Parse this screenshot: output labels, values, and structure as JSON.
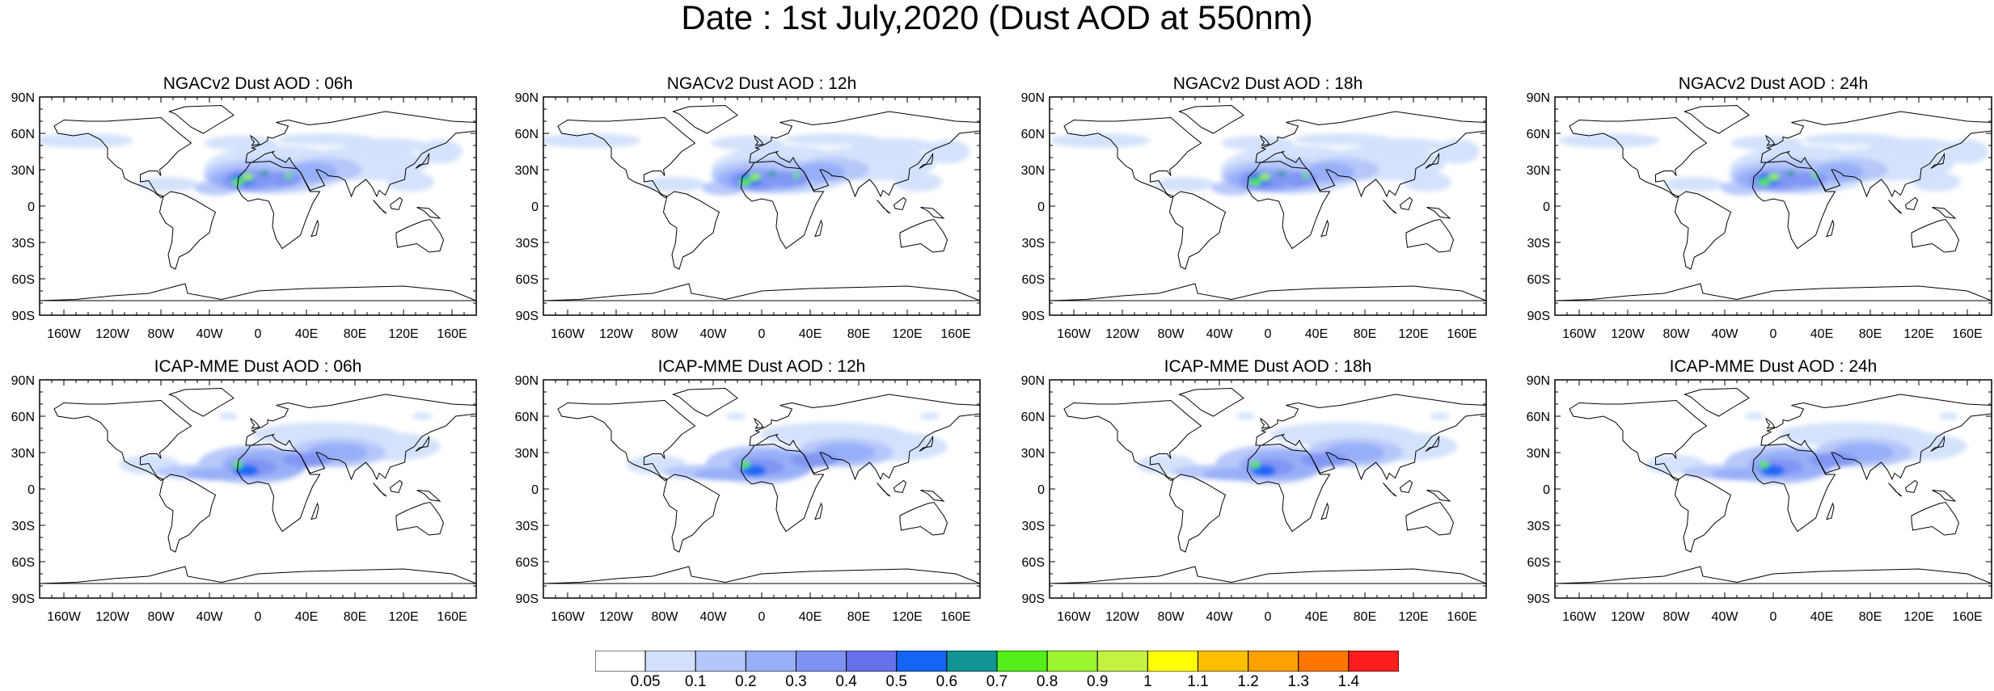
{
  "title": "Date : 1st July,2020 (Dust AOD at 550nm)",
  "panels": [
    {
      "title": "NGACv2 Dust AOD : 06h",
      "model": "NGACv2",
      "hour": "06h"
    },
    {
      "title": "NGACv2 Dust AOD : 12h",
      "model": "NGACv2",
      "hour": "12h"
    },
    {
      "title": "NGACv2 Dust AOD : 18h",
      "model": "NGACv2",
      "hour": "18h"
    },
    {
      "title": "NGACv2 Dust AOD : 24h",
      "model": "NGACv2",
      "hour": "24h"
    },
    {
      "title": "ICAP-MME Dust AOD : 06h",
      "model": "ICAP-MME",
      "hour": "06h"
    },
    {
      "title": "ICAP-MME Dust AOD : 12h",
      "model": "ICAP-MME",
      "hour": "12h"
    },
    {
      "title": "ICAP-MME Dust AOD : 18h",
      "model": "ICAP-MME",
      "hour": "18h"
    },
    {
      "title": "ICAP-MME Dust AOD : 24h",
      "model": "ICAP-MME",
      "hour": "24h"
    }
  ],
  "lat_labels": [
    "90N",
    "60N",
    "30N",
    "0",
    "30S",
    "60S",
    "90S"
  ],
  "lon_labels": [
    "160W",
    "120W",
    "80W",
    "40W",
    "0",
    "40E",
    "80E",
    "120E",
    "160E"
  ],
  "colorbar": {
    "labels": [
      "0.05",
      "0.1",
      "0.2",
      "0.3",
      "0.4",
      "0.5",
      "0.6",
      "0.7",
      "0.8",
      "0.9",
      "1",
      "1.1",
      "1.2",
      "1.3",
      "1.4"
    ],
    "colors": [
      "#ffffff",
      "#d2e0fb",
      "#b4c6fa",
      "#97aef8",
      "#7f93f2",
      "#6670ea",
      "#1565f5",
      "#119494",
      "#54ef1a",
      "#9bf52f",
      "#c4f243",
      "#ffff00",
      "#ffbf00",
      "#ffa000",
      "#ff7700",
      "#ff1e1e"
    ]
  }
}
